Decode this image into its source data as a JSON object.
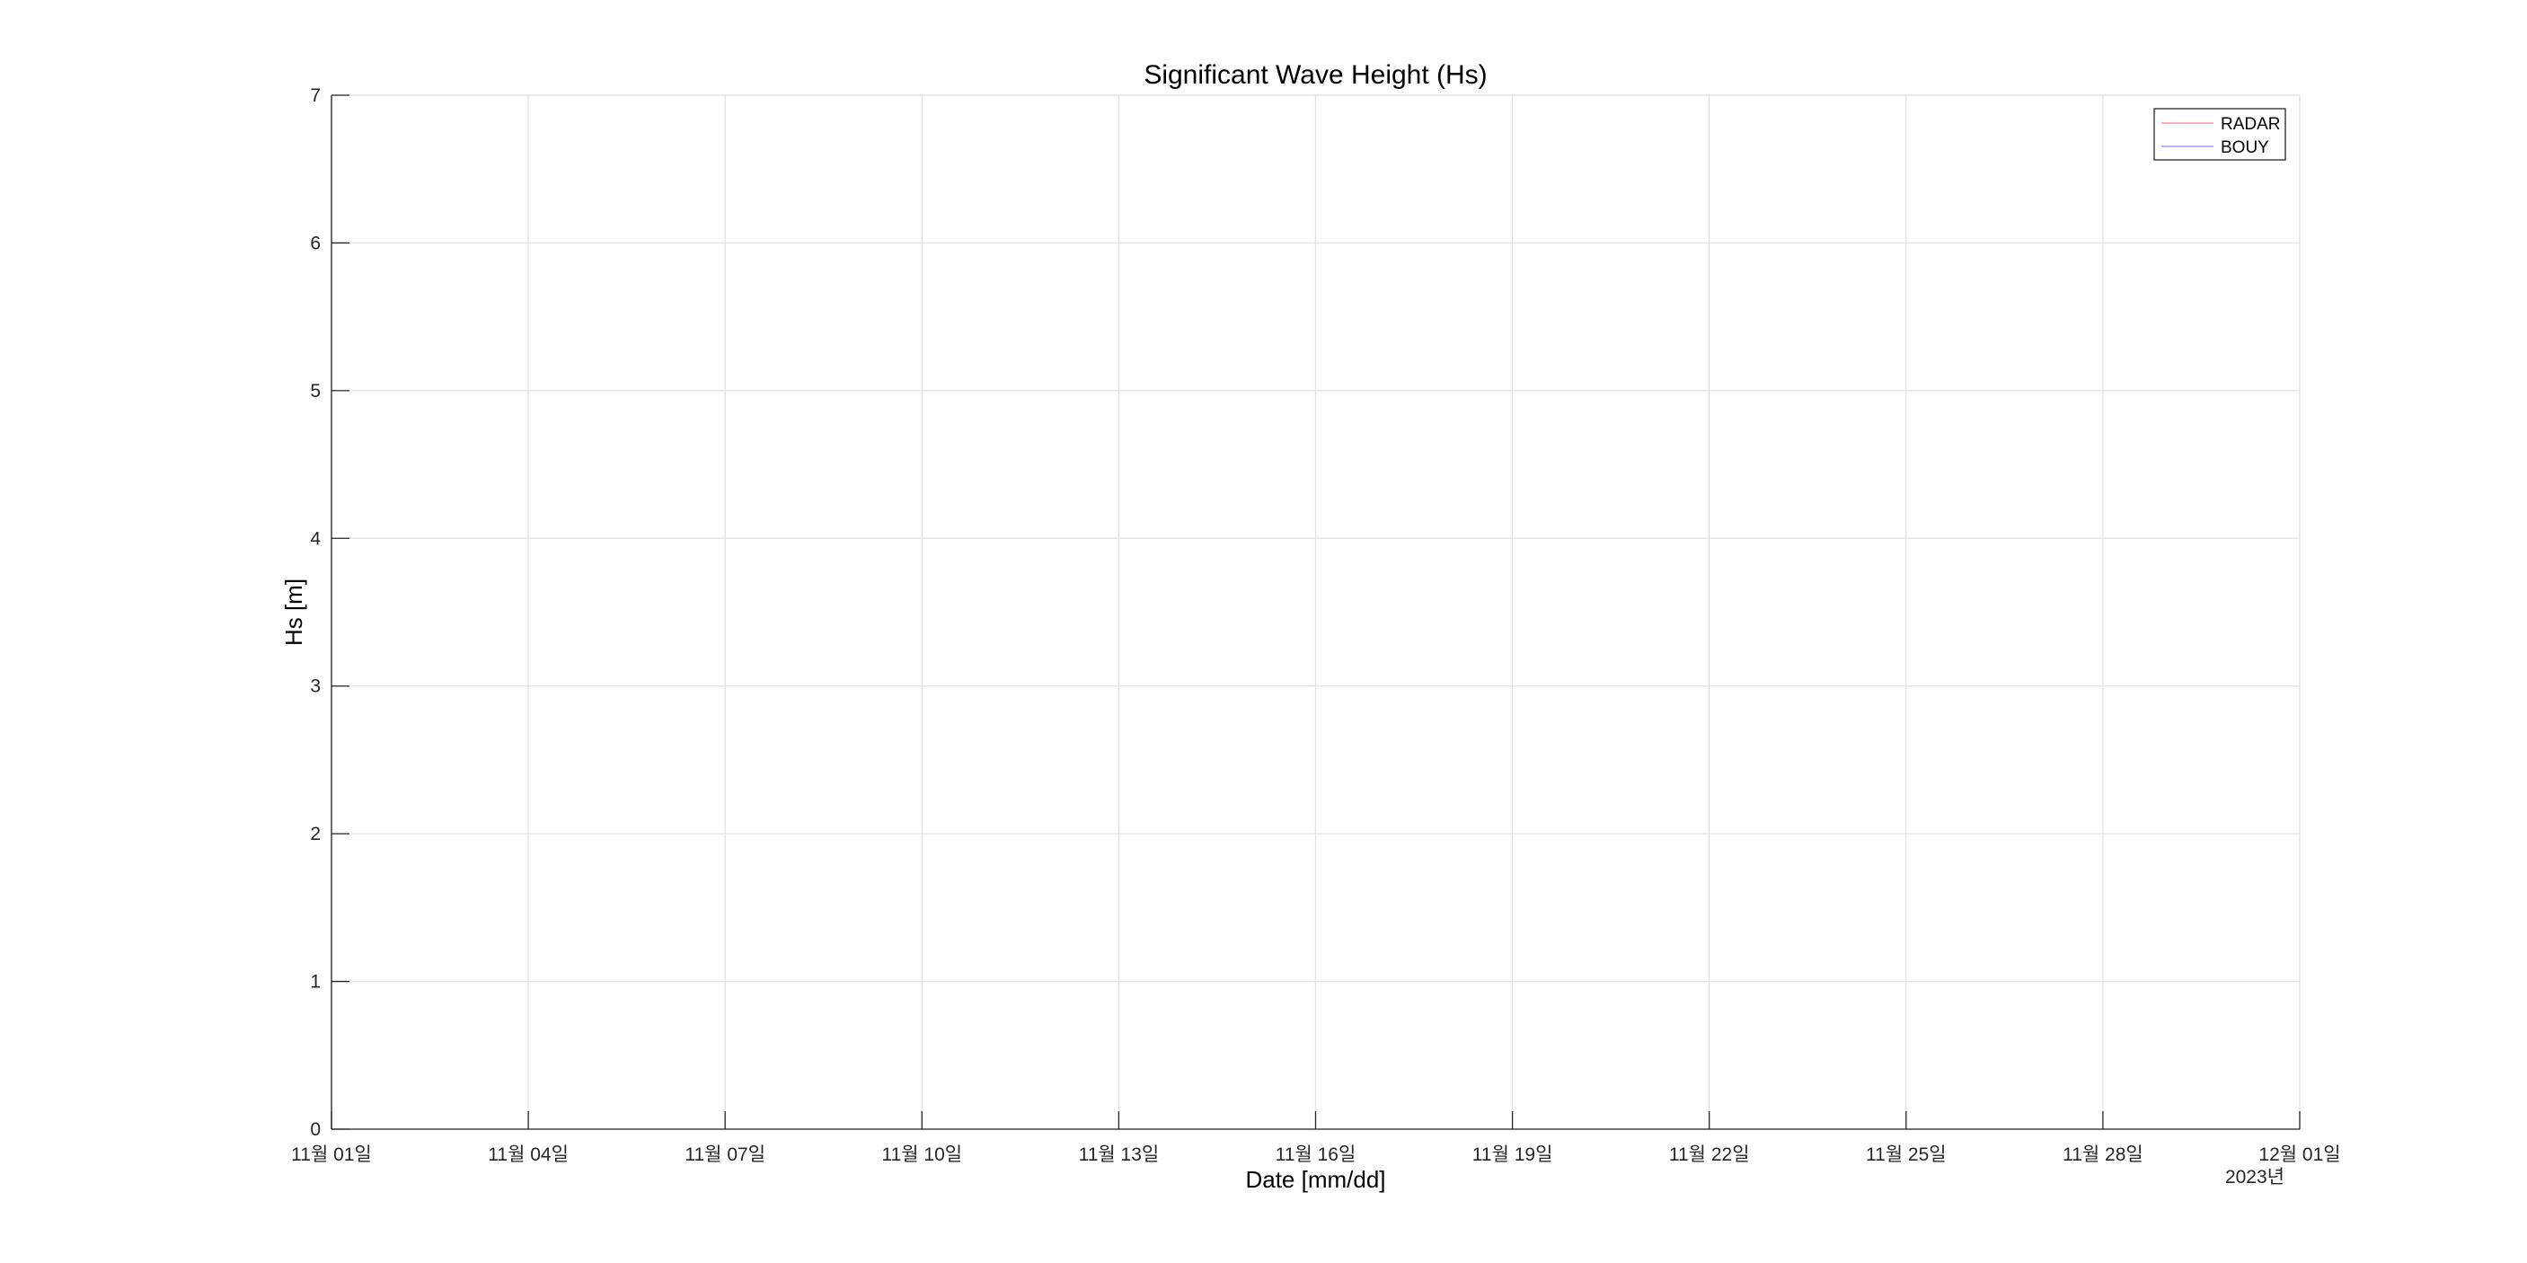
{
  "chart_data": {
    "type": "line",
    "title": "Significant Wave Height (Hs)",
    "xlabel": "Date [mm/dd]",
    "ylabel": "Hs [m]",
    "xlim": [
      "2023-11-01",
      "2023-12-01"
    ],
    "ylim": [
      0,
      7
    ],
    "x_ticks": [
      {
        "date": "2023-11-01",
        "label": "11월 01일"
      },
      {
        "date": "2023-11-04",
        "label": "11월 04일"
      },
      {
        "date": "2023-11-07",
        "label": "11월 07일"
      },
      {
        "date": "2023-11-10",
        "label": "11월 10일"
      },
      {
        "date": "2023-11-13",
        "label": "11월 13일"
      },
      {
        "date": "2023-11-16",
        "label": "11월 16일"
      },
      {
        "date": "2023-11-19",
        "label": "11월 19일"
      },
      {
        "date": "2023-11-22",
        "label": "11월 22일"
      },
      {
        "date": "2023-11-25",
        "label": "11월 25일"
      },
      {
        "date": "2023-11-28",
        "label": "11월 28일"
      },
      {
        "date": "2023-12-01",
        "label": "12월 01일"
      }
    ],
    "x_secondary_label": "2023년",
    "y_ticks": [
      0,
      1,
      2,
      3,
      4,
      5,
      6,
      7
    ],
    "grid": true,
    "legend_position": "top-right",
    "series": [
      {
        "name": "RADAR",
        "color": "#ff9999",
        "x": [],
        "y": []
      },
      {
        "name": "BOUY",
        "color": "#9999ff",
        "x": [],
        "y": []
      }
    ]
  }
}
